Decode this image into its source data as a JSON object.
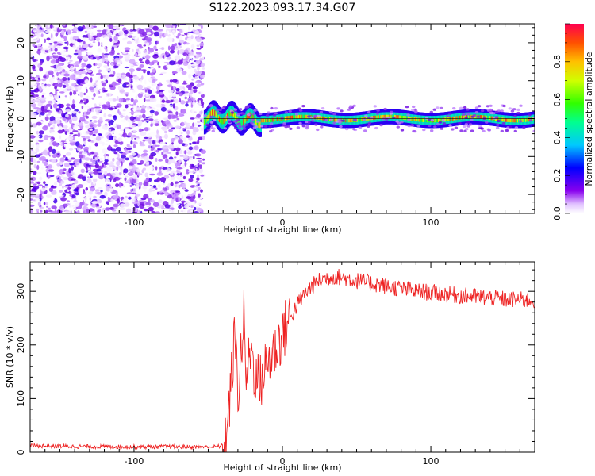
{
  "title": "S122.2023.093.17.34.G07",
  "chart_data": [
    {
      "type": "heatmap",
      "xlabel": "Height of straight line (km)",
      "ylabel": "Frequency (Hz)",
      "xlim": [
        -170,
        170
      ],
      "ylim": [
        -25,
        25
      ],
      "xticks": [
        -100,
        0,
        100
      ],
      "yticks": [
        -20,
        -10,
        0,
        10,
        20
      ],
      "colorbar": {
        "label": "Normalized spectral amplitude",
        "range": [
          0.0,
          1.0
        ],
        "ticks": [
          "0.0",
          "0.2",
          "0.4",
          "0.6",
          "0.8"
        ],
        "colormap": [
          "#ffffff",
          "#c080ff",
          "#6a00e0",
          "#0000ff",
          "#00c8ff",
          "#00ff80",
          "#30ff00",
          "#c8ff00",
          "#ffd000",
          "#ff5000",
          "#ff0050"
        ]
      },
      "features": [
        {
          "description": "noise",
          "x_range": [
            -170,
            -53
          ],
          "y_range": [
            -25,
            25
          ],
          "amplitude": [
            0.0,
            0.25
          ]
        },
        {
          "description": "signal",
          "x_range": [
            -53,
            170
          ],
          "center_frequency": 0,
          "width_hz": 2,
          "amplitude": [
            0.5,
            0.95
          ]
        }
      ]
    },
    {
      "type": "line",
      "xlabel": "Height of straight line (km)",
      "ylabel": "SNR (10 * v/v)",
      "xlim": [
        -170,
        170
      ],
      "ylim": [
        0,
        355
      ],
      "xticks": [
        -100,
        0,
        100
      ],
      "yticks": [
        0,
        100,
        200,
        300
      ],
      "color": "#ee2222",
      "series": [
        {
          "x": [
            -170,
            -150,
            -120,
            -90,
            -60,
            -45,
            -40,
            -38,
            -36,
            -34,
            -32,
            -30,
            -28,
            -26,
            -24,
            -22,
            -20,
            -18,
            -15,
            -10,
            -5,
            0,
            5,
            10,
            15,
            20,
            25,
            30,
            35,
            40,
            50,
            60,
            70,
            80,
            90,
            100,
            110,
            120,
            130,
            140,
            150,
            160,
            170
          ],
          "y": [
            12,
            11,
            10,
            10,
            10,
            10,
            12,
            30,
            80,
            150,
            220,
            110,
            180,
            250,
            120,
            200,
            170,
            140,
            130,
            170,
            190,
            220,
            250,
            275,
            295,
            310,
            320,
            325,
            328,
            326,
            320,
            315,
            310,
            305,
            300,
            298,
            295,
            292,
            290,
            288,
            285,
            284,
            283
          ]
        }
      ]
    }
  ]
}
